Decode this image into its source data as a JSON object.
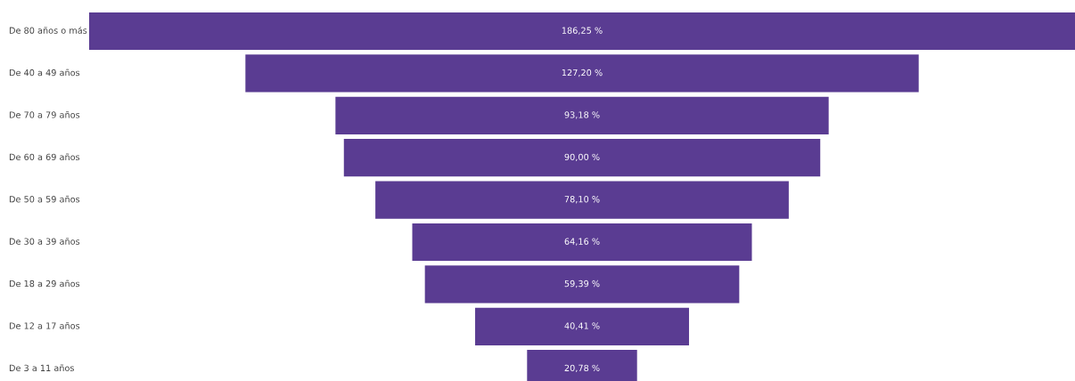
{
  "chart_data": {
    "type": "other",
    "categories": [
      "De 80 años o más",
      "De 40 a 49 años",
      "De 70 a 79 años",
      "De 60 a 69 años",
      "De 50 a 59 años",
      "De 30 a 39 años",
      "De 18 a 29 años",
      "De 12 a 17 años",
      "De 3 a 11 años"
    ],
    "values": [
      186.25,
      127.2,
      93.18,
      90.0,
      78.1,
      64.16,
      59.39,
      40.41,
      20.78
    ],
    "value_labels": [
      "186,25 %",
      "127,20 %",
      "93,18 %",
      "90,00 %",
      "78,10 %",
      "64,16 %",
      "59,39 %",
      "40,41 %",
      "20,78 %"
    ],
    "color": "#5a3c92"
  }
}
